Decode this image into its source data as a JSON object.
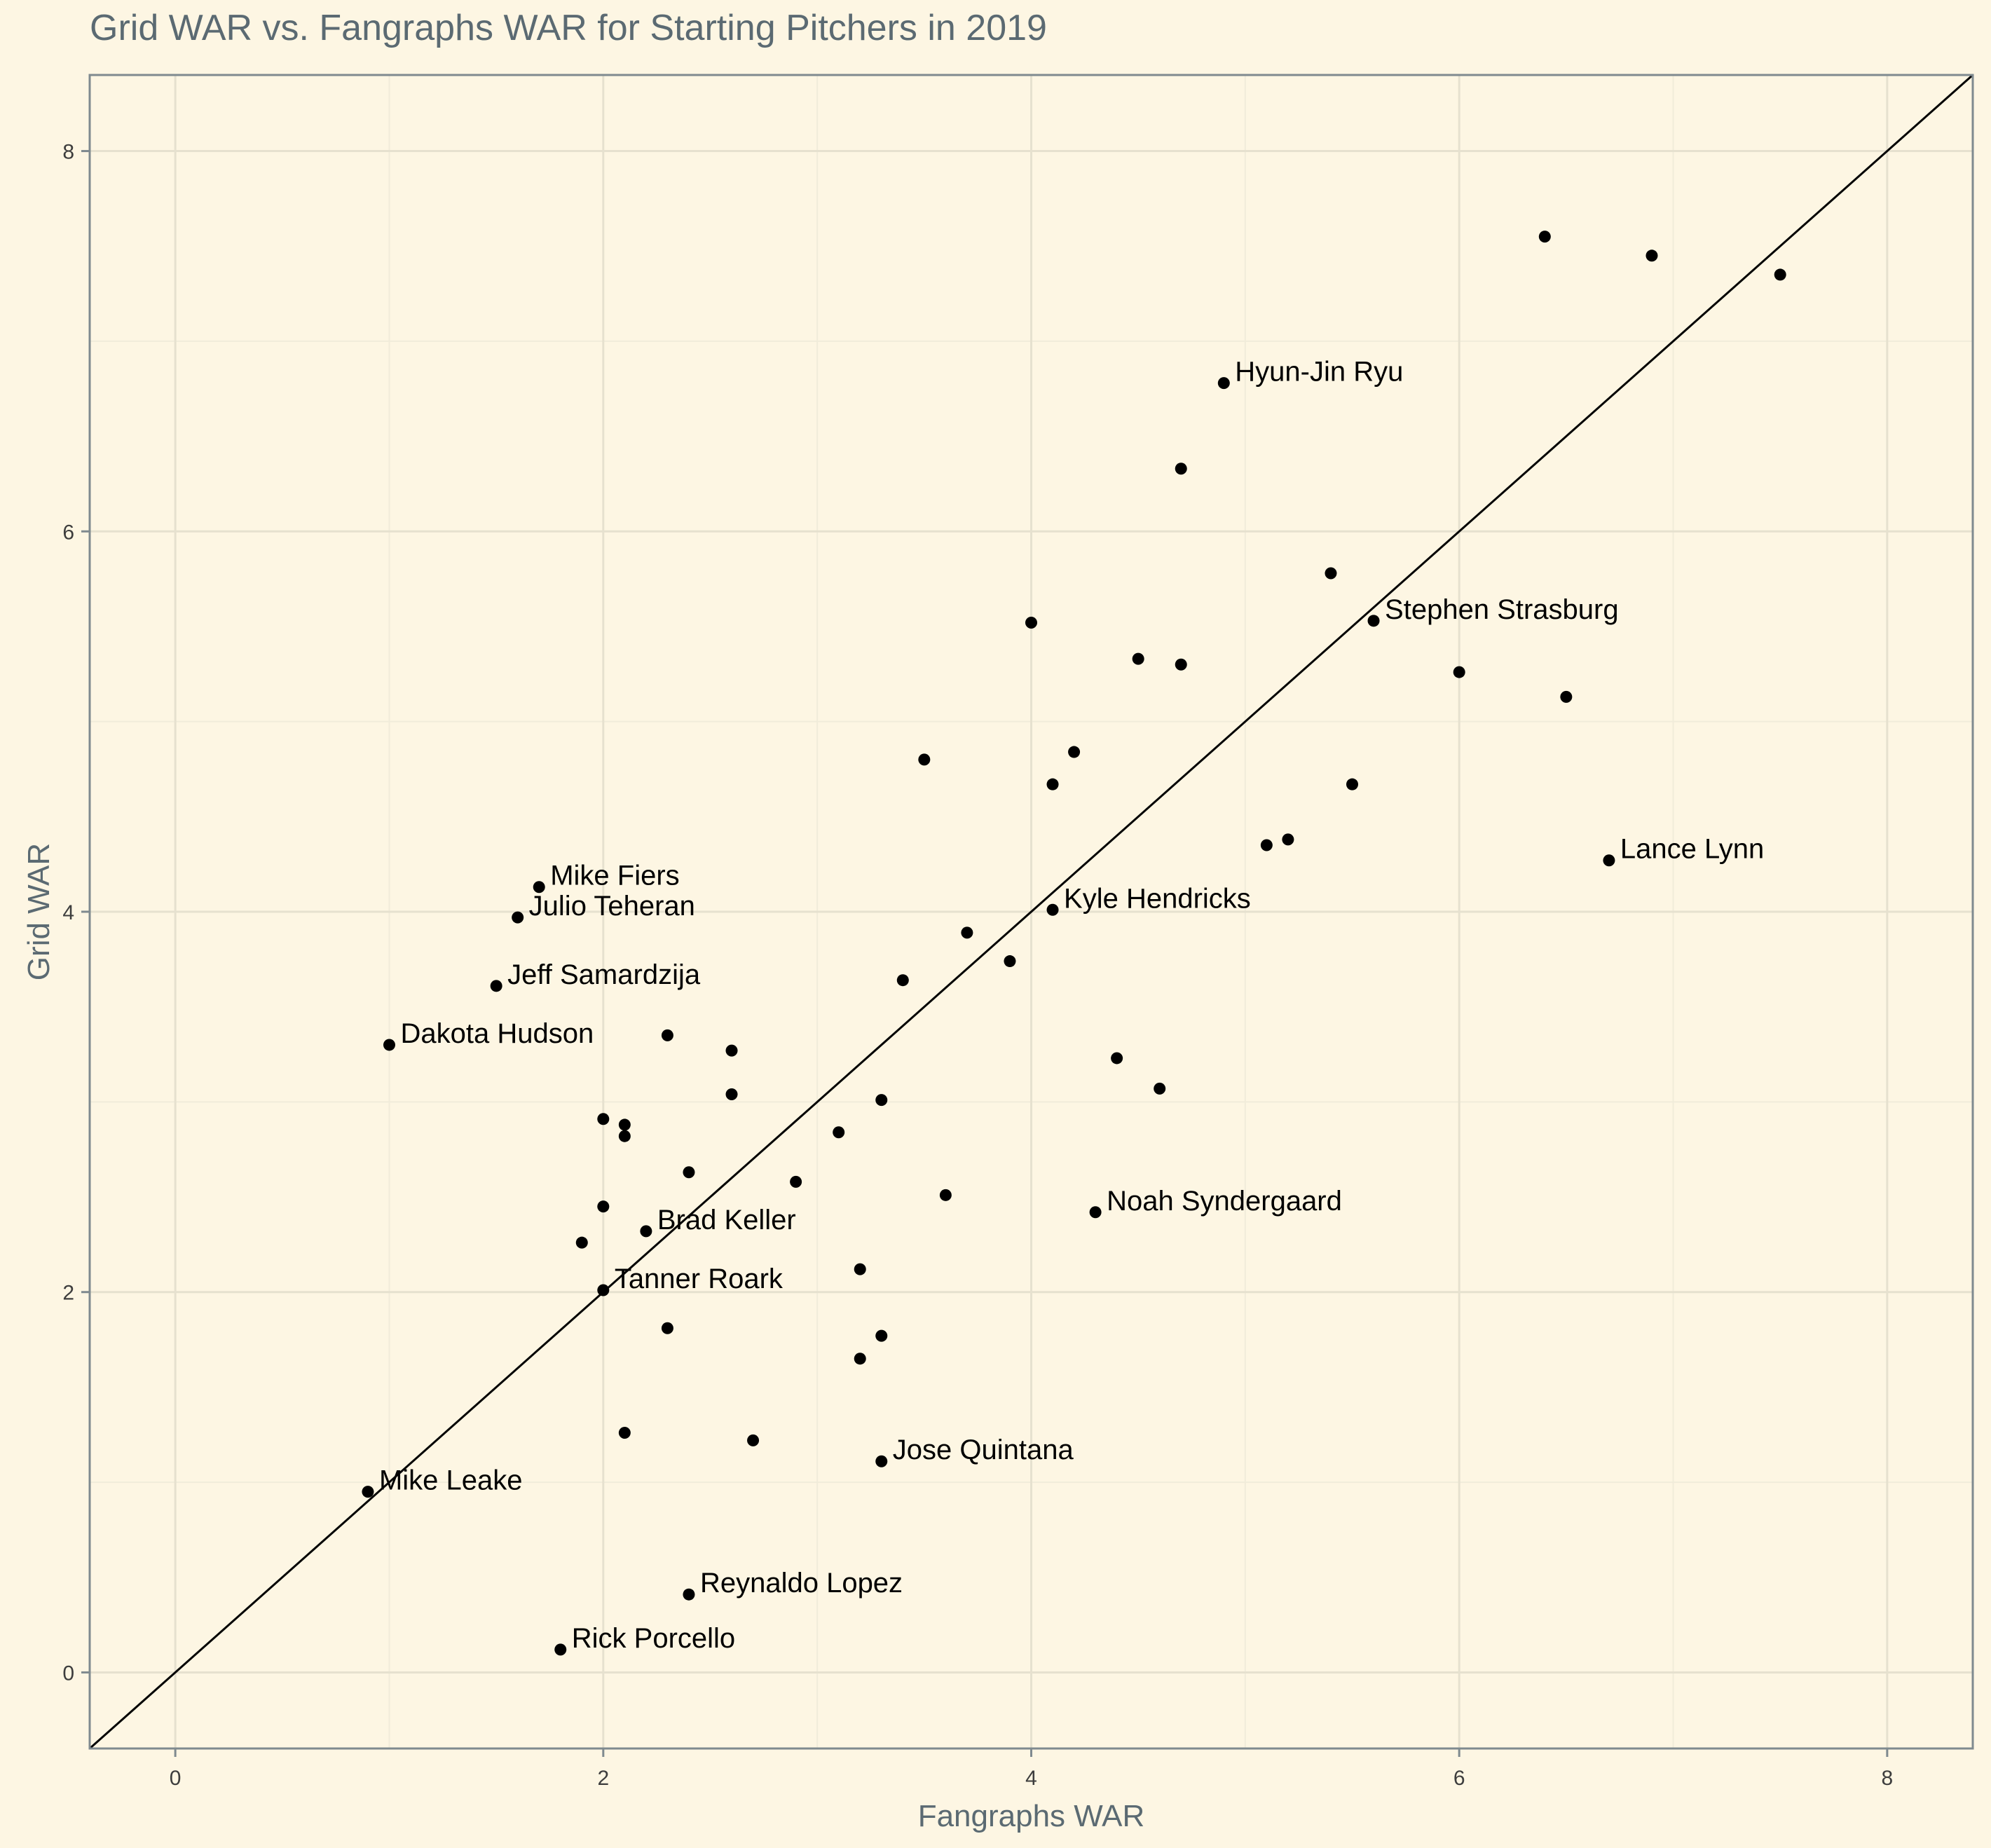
{
  "chart_data": {
    "type": "scatter",
    "title": "Grid WAR vs. Fangraphs WAR for Starting Pitchers in 2019",
    "xlabel": "Fangraphs WAR",
    "ylabel": "Grid WAR",
    "xlim": [
      -0.4,
      8.4
    ],
    "ylim": [
      -0.4,
      8.4
    ],
    "x_ticks": [
      0,
      2,
      4,
      6,
      8
    ],
    "y_ticks": [
      0,
      2,
      4,
      6,
      8
    ],
    "x_tick_labels": [
      "0",
      "2",
      "4",
      "6",
      "8"
    ],
    "y_tick_labels": [
      "0",
      "2",
      "4",
      "6",
      "8"
    ],
    "grid": true,
    "reference_line": "y = x",
    "colors": {
      "background": "#fdf6e3",
      "panel": "#fdf6e3",
      "grid_major": "#e6e1cf",
      "grid_minor": "#f1ecda",
      "axis": "#7f8a8f",
      "title": "#5b6a72",
      "point": "#000000"
    },
    "points": [
      {
        "x": 6.4,
        "y": 7.55,
        "label": ""
      },
      {
        "x": 6.9,
        "y": 7.45,
        "label": ""
      },
      {
        "x": 7.5,
        "y": 7.35,
        "label": ""
      },
      {
        "x": 4.9,
        "y": 6.78,
        "label": "Hyun-Jin Ryu"
      },
      {
        "x": 4.7,
        "y": 6.33,
        "label": ""
      },
      {
        "x": 5.4,
        "y": 5.78,
        "label": ""
      },
      {
        "x": 5.6,
        "y": 5.53,
        "label": "Stephen Strasburg"
      },
      {
        "x": 4.0,
        "y": 5.52,
        "label": ""
      },
      {
        "x": 4.5,
        "y": 5.33,
        "label": ""
      },
      {
        "x": 4.7,
        "y": 5.3,
        "label": ""
      },
      {
        "x": 6.0,
        "y": 5.26,
        "label": ""
      },
      {
        "x": 6.5,
        "y": 5.13,
        "label": ""
      },
      {
        "x": 4.2,
        "y": 4.84,
        "label": ""
      },
      {
        "x": 3.5,
        "y": 4.8,
        "label": ""
      },
      {
        "x": 4.1,
        "y": 4.67,
        "label": ""
      },
      {
        "x": 5.5,
        "y": 4.67,
        "label": ""
      },
      {
        "x": 5.2,
        "y": 4.38,
        "label": ""
      },
      {
        "x": 5.1,
        "y": 4.35,
        "label": ""
      },
      {
        "x": 6.7,
        "y": 4.27,
        "label": "Lance Lynn"
      },
      {
        "x": 1.7,
        "y": 4.13,
        "label": "Mike Fiers"
      },
      {
        "x": 4.1,
        "y": 4.01,
        "label": "Kyle Hendricks"
      },
      {
        "x": 1.6,
        "y": 3.97,
        "label": "Julio Teheran"
      },
      {
        "x": 3.7,
        "y": 3.89,
        "label": ""
      },
      {
        "x": 3.9,
        "y": 3.74,
        "label": ""
      },
      {
        "x": 3.4,
        "y": 3.64,
        "label": ""
      },
      {
        "x": 1.5,
        "y": 3.61,
        "label": "Jeff Samardzija"
      },
      {
        "x": 2.3,
        "y": 3.35,
        "label": ""
      },
      {
        "x": 1.0,
        "y": 3.3,
        "label": "Dakota Hudson"
      },
      {
        "x": 2.6,
        "y": 3.27,
        "label": ""
      },
      {
        "x": 4.4,
        "y": 3.23,
        "label": ""
      },
      {
        "x": 4.6,
        "y": 3.07,
        "label": ""
      },
      {
        "x": 2.6,
        "y": 3.04,
        "label": ""
      },
      {
        "x": 3.3,
        "y": 3.01,
        "label": ""
      },
      {
        "x": 2.0,
        "y": 2.91,
        "label": ""
      },
      {
        "x": 2.1,
        "y": 2.88,
        "label": ""
      },
      {
        "x": 3.1,
        "y": 2.84,
        "label": ""
      },
      {
        "x": 2.1,
        "y": 2.82,
        "label": ""
      },
      {
        "x": 2.4,
        "y": 2.63,
        "label": ""
      },
      {
        "x": 2.9,
        "y": 2.58,
        "label": ""
      },
      {
        "x": 3.6,
        "y": 2.51,
        "label": ""
      },
      {
        "x": 2.0,
        "y": 2.45,
        "label": ""
      },
      {
        "x": 4.3,
        "y": 2.42,
        "label": "Noah Syndergaard"
      },
      {
        "x": 2.2,
        "y": 2.32,
        "label": "Brad Keller"
      },
      {
        "x": 1.9,
        "y": 2.26,
        "label": ""
      },
      {
        "x": 3.2,
        "y": 2.12,
        "label": ""
      },
      {
        "x": 2.0,
        "y": 2.01,
        "label": "Tanner Roark"
      },
      {
        "x": 2.3,
        "y": 1.81,
        "label": ""
      },
      {
        "x": 3.3,
        "y": 1.77,
        "label": ""
      },
      {
        "x": 3.2,
        "y": 1.65,
        "label": ""
      },
      {
        "x": 2.1,
        "y": 1.26,
        "label": ""
      },
      {
        "x": 2.7,
        "y": 1.22,
        "label": ""
      },
      {
        "x": 3.3,
        "y": 1.11,
        "label": "Jose Quintana"
      },
      {
        "x": 0.9,
        "y": 0.95,
        "label": "Mike Leake"
      },
      {
        "x": 2.4,
        "y": 0.41,
        "label": "Reynaldo Lopez"
      },
      {
        "x": 1.8,
        "y": 0.12,
        "label": "Rick Porcello"
      }
    ]
  }
}
